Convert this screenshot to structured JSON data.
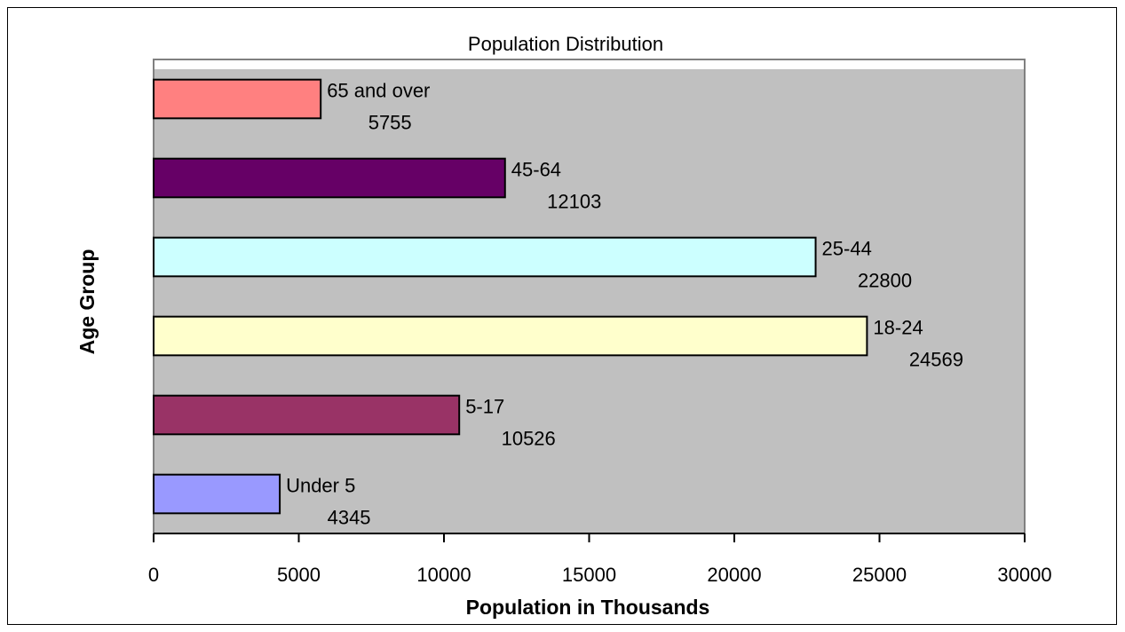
{
  "chart_data": {
    "type": "bar",
    "orientation": "horizontal",
    "title": "Population Distribution",
    "xlabel": "Population in Thousands",
    "ylabel": "Age Group",
    "xlim": [
      0,
      30000
    ],
    "xticks": [
      0,
      5000,
      10000,
      15000,
      20000,
      25000,
      30000
    ],
    "grid": false,
    "legend": "none",
    "categories": [
      "Under 5",
      "5-17",
      "18-24",
      "25-44",
      "45-64",
      "65 and over"
    ],
    "values": [
      4345,
      10526,
      24569,
      22800,
      12103,
      5755
    ],
    "colors": [
      "#9999ff",
      "#993366",
      "#ffffcc",
      "#ccffff",
      "#660066",
      "#ff8080"
    ],
    "plot_background": "#c0c0c0"
  }
}
